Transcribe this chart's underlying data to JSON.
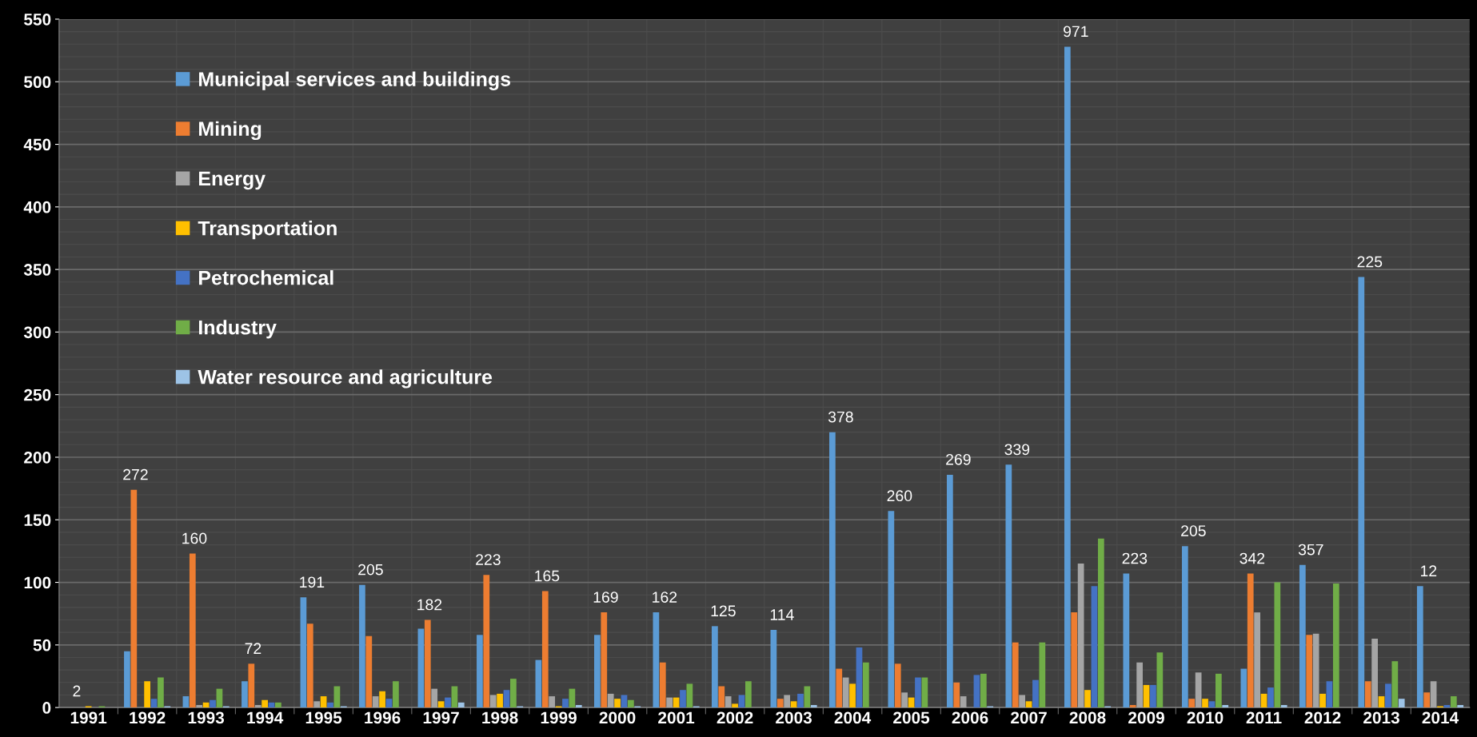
{
  "chart_data": {
    "type": "bar",
    "categories": [
      "1991",
      "1992",
      "1993",
      "1994",
      "1995",
      "1996",
      "1997",
      "1998",
      "1999",
      "2000",
      "2001",
      "2002",
      "2003",
      "2004",
      "2005",
      "2006",
      "2007",
      "2008",
      "2009",
      "2010",
      "2011",
      "2012",
      "2013",
      "2014"
    ],
    "series": [
      {
        "name": "Municipal services and buildings",
        "color": "#5b9bd5",
        "values": [
          0,
          45,
          9,
          21,
          88,
          98,
          63,
          58,
          38,
          58,
          76,
          65,
          62,
          220,
          157,
          186,
          194,
          528,
          107,
          129,
          31,
          114,
          344,
          97
        ]
      },
      {
        "name": "Mining",
        "color": "#ed7d31",
        "values": [
          0,
          174,
          123,
          35,
          67,
          57,
          70,
          106,
          93,
          76,
          36,
          17,
          7,
          31,
          35,
          20,
          52,
          76,
          2,
          7,
          107,
          58,
          21,
          12
        ]
      },
      {
        "name": "Energy",
        "color": "#a5a5a5",
        "values": [
          0,
          0,
          2,
          2,
          5,
          9,
          15,
          10,
          9,
          11,
          8,
          9,
          10,
          24,
          12,
          9,
          10,
          115,
          36,
          28,
          76,
          59,
          55,
          21
        ]
      },
      {
        "name": "Transportation",
        "color": "#ffc000",
        "values": [
          1,
          21,
          4,
          6,
          9,
          13,
          5,
          11,
          1,
          7,
          8,
          3,
          5,
          19,
          8,
          0,
          5,
          14,
          18,
          7,
          11,
          11,
          9,
          1
        ]
      },
      {
        "name": "Petrochemical",
        "color": "#4472c4",
        "values": [
          0,
          7,
          6,
          4,
          4,
          7,
          8,
          14,
          7,
          10,
          14,
          10,
          11,
          48,
          24,
          26,
          22,
          97,
          18,
          5,
          16,
          21,
          19,
          2
        ]
      },
      {
        "name": "Industry",
        "color": "#70ad47",
        "values": [
          1,
          24,
          15,
          4,
          17,
          21,
          17,
          23,
          15,
          6,
          19,
          21,
          17,
          36,
          24,
          27,
          52,
          135,
          44,
          27,
          100,
          99,
          37,
          9
        ]
      },
      {
        "name": "Water resource and agriculture",
        "color": "#9dc3e6",
        "values": [
          0,
          1,
          1,
          0,
          1,
          0,
          4,
          1,
          2,
          1,
          1,
          0,
          2,
          0,
          0,
          1,
          0,
          1,
          0,
          2,
          2,
          0,
          7,
          2
        ]
      }
    ],
    "annotations": [
      "2",
      "272",
      "160",
      "72",
      "191",
      "205",
      "182",
      "223",
      "165",
      "169",
      "162",
      "125",
      "114",
      "378",
      "260",
      "269",
      "339",
      "971",
      "223",
      "205",
      "342",
      "357",
      "225",
      "12"
    ],
    "ylim": [
      0,
      550
    ],
    "yticks": [
      0,
      50,
      100,
      150,
      200,
      250,
      300,
      350,
      400,
      450,
      500,
      550
    ],
    "grid": true,
    "legend": "top left"
  }
}
